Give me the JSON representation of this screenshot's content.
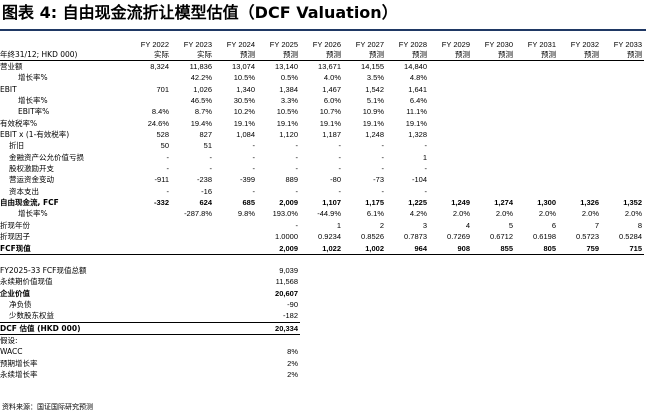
{
  "title": "图表 4: 自由现金流折让模型估值（DCF Valuation）",
  "header": {
    "unit_label": "年终31/12; HKD 000)",
    "years": [
      "FY 2022",
      "FY 2023",
      "FY 2024",
      "FY 2025",
      "FY 2026",
      "FY 2027",
      "FY 2028",
      "FY 2029",
      "FY 2030",
      "FY 2031",
      "FY 2032",
      "FY 2033"
    ],
    "types": [
      "实际",
      "实际",
      "预测",
      "预测",
      "预测",
      "预测",
      "预测",
      "预测",
      "预测",
      "预测",
      "预测",
      "预测"
    ]
  },
  "rows": [
    {
      "label": "营业额",
      "values": [
        "8,324",
        "11,836",
        "13,074",
        "13,140",
        "13,671",
        "14,155",
        "14,840",
        "",
        "",
        "",
        "",
        ""
      ]
    },
    {
      "label": "增长率%",
      "values": [
        "",
        "42.2%",
        "10.5%",
        "0.5%",
        "4.0%",
        "3.5%",
        "4.8%",
        "",
        "",
        "",
        "",
        ""
      ]
    },
    {
      "label": "EBIT",
      "values": [
        "701",
        "1,026",
        "1,340",
        "1,384",
        "1,467",
        "1,542",
        "1,641",
        "",
        "",
        "",
        "",
        ""
      ]
    },
    {
      "label": "增长率%",
      "values": [
        "",
        "46.5%",
        "30.5%",
        "3.3%",
        "6.0%",
        "5.1%",
        "6.4%",
        "",
        "",
        "",
        "",
        ""
      ]
    },
    {
      "label": "EBIT率%",
      "values": [
        "8.4%",
        "8.7%",
        "10.2%",
        "10.5%",
        "10.7%",
        "10.9%",
        "11.1%",
        "",
        "",
        "",
        "",
        ""
      ]
    },
    {
      "label": "有效税率%",
      "values": [
        "24.6%",
        "19.4%",
        "19.1%",
        "19.1%",
        "19.1%",
        "19.1%",
        "19.1%",
        "",
        "",
        "",
        "",
        ""
      ]
    },
    {
      "label": "EBIT x (1-有效税率)",
      "values": [
        "528",
        "827",
        "1,084",
        "1,120",
        "1,187",
        "1,248",
        "1,328",
        "",
        "",
        "",
        "",
        ""
      ]
    },
    {
      "label": "折旧",
      "values": [
        "50",
        "51",
        "-",
        "-",
        "-",
        "-",
        "-",
        "",
        "",
        "",
        "",
        ""
      ]
    },
    {
      "label": "金融资产公允价值亏损",
      "values": [
        "-",
        "-",
        "-",
        "-",
        "-",
        "-",
        "1",
        "",
        "",
        "",
        "",
        ""
      ]
    },
    {
      "label": "股权激励开支",
      "values": [
        "-",
        "-",
        "-",
        "-",
        "-",
        "-",
        "-",
        "",
        "",
        "",
        "",
        ""
      ]
    },
    {
      "label": "营运资金变动",
      "values": [
        "-911",
        "-238",
        "-399",
        "889",
        "-80",
        "-73",
        "-104",
        "",
        "",
        "",
        "",
        ""
      ]
    },
    {
      "label": "资本支出",
      "values": [
        "-",
        "-16",
        "-",
        "-",
        "-",
        "-",
        "-",
        "",
        "",
        "",
        "",
        ""
      ]
    },
    {
      "label": "自由现金流, FCF",
      "values": [
        "-332",
        "624",
        "685",
        "2,009",
        "1,107",
        "1,175",
        "1,225",
        "1,249",
        "1,274",
        "1,300",
        "1,326",
        "1,352"
      ]
    },
    {
      "label": "增长率%",
      "values": [
        "",
        "-287.8%",
        "9.8%",
        "193.0%",
        "-44.9%",
        "6.1%",
        "4.2%",
        "2.0%",
        "2.0%",
        "2.0%",
        "2.0%",
        "2.0%"
      ]
    },
    {
      "label": "折现年份",
      "values": [
        "",
        "",
        "",
        "-",
        "1",
        "2",
        "3",
        "4",
        "5",
        "6",
        "7",
        "8"
      ]
    },
    {
      "label": "折现因子",
      "values": [
        "",
        "",
        "",
        "1.0000",
        "0.9234",
        "0.8526",
        "0.7873",
        "0.7269",
        "0.6712",
        "0.6198",
        "0.5723",
        "0.5284"
      ]
    },
    {
      "label": "FCF现值",
      "values": [
        "",
        "",
        "",
        "2,009",
        "1,022",
        "1,002",
        "964",
        "908",
        "855",
        "805",
        "759",
        "715"
      ]
    }
  ],
  "summary": [
    {
      "label": "FY2025-33 FCF现值总额",
      "value": "9,039"
    },
    {
      "label": "永续期价值现值",
      "value": "11,568"
    },
    {
      "label": "企业价值",
      "value": "20,607"
    },
    {
      "label": "净负债",
      "value": "-90"
    },
    {
      "label": "少数股东权益",
      "value": "-182"
    },
    {
      "label": "DCF 估值 (HKD 000)",
      "value": "20,334"
    },
    {
      "label": "假设:",
      "value": ""
    },
    {
      "label": "WACC",
      "value": "8%"
    },
    {
      "label": "预期增长率",
      "value": "2%"
    },
    {
      "label": "永续增长率",
      "value": "2%"
    }
  ],
  "footer": "资料来源：国证国际研究预测"
}
